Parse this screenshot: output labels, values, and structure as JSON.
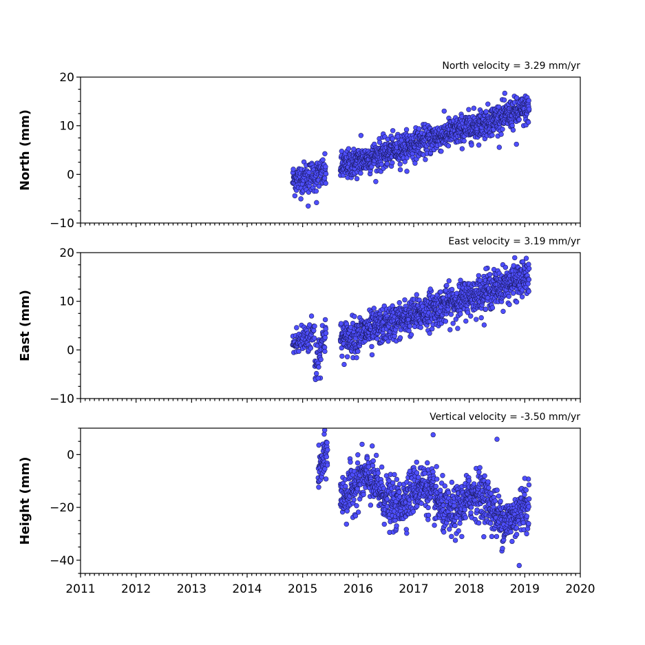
{
  "chart_data": [
    {
      "type": "scatter",
      "panel": "north",
      "ylabel": "North (mm)",
      "velocity_label": "North velocity = 3.29 mm/yr",
      "xlim": [
        2011,
        2020
      ],
      "ylim": [
        -10,
        20
      ],
      "yticks": [
        -10,
        0,
        10,
        20
      ],
      "xticks": [
        2011,
        2012,
        2013,
        2014,
        2015,
        2016,
        2017,
        2018,
        2019,
        2020
      ],
      "color": "#4f4fff",
      "segments": [
        {
          "x_start": 2014.82,
          "x_end": 2015.42,
          "y_start": -1.2,
          "y_end": 0.3,
          "scatter": 1.6,
          "step": 0.004
        },
        {
          "x_start": 2015.68,
          "x_end": 2019.08,
          "y_start": 1.5,
          "y_end": 13.5,
          "scatter": 1.5,
          "step": 0.0032
        }
      ],
      "outliers": [
        [
          2015.1,
          -6.5
        ],
        [
          2015.25,
          -5.8
        ],
        [
          2016.05,
          8.0
        ],
        [
          2018.85,
          6.2
        ]
      ]
    },
    {
      "type": "scatter",
      "panel": "east",
      "ylabel": "East (mm)",
      "velocity_label": "East velocity = 3.19 mm/yr",
      "xlim": [
        2011,
        2020
      ],
      "ylim": [
        -10,
        20
      ],
      "yticks": [
        -10,
        0,
        10,
        20
      ],
      "xticks": [
        2011,
        2012,
        2013,
        2014,
        2015,
        2016,
        2017,
        2018,
        2019,
        2020
      ],
      "color": "#4f4fff",
      "segments": [
        {
          "x_start": 2014.82,
          "x_end": 2015.22,
          "y_start": 1.0,
          "y_end": 3.5,
          "scatter": 1.8,
          "step": 0.005
        },
        {
          "x_start": 2015.22,
          "x_end": 2015.42,
          "y_start": -3.0,
          "y_end": 4.0,
          "scatter": 2.2,
          "step": 0.004
        },
        {
          "x_start": 2015.68,
          "x_end": 2019.08,
          "y_start": 2.0,
          "y_end": 15.0,
          "scatter": 1.8,
          "step": 0.0032
        }
      ],
      "outliers": [
        [
          2015.28,
          -5.8
        ],
        [
          2016.25,
          -1.0
        ],
        [
          2018.3,
          16.7
        ],
        [
          2017.3,
          12.5
        ]
      ]
    },
    {
      "type": "scatter",
      "panel": "vertical",
      "ylabel": "Height (mm)",
      "velocity_label": "Vertical velocity = -3.50 mm/yr",
      "xlim": [
        2011,
        2020
      ],
      "ylim": [
        -45,
        10
      ],
      "yticks": [
        -40,
        -20,
        0
      ],
      "xticks": [
        2011,
        2012,
        2013,
        2014,
        2015,
        2016,
        2017,
        2018,
        2019,
        2020
      ],
      "color": "#4f4fff",
      "segments": [
        {
          "x_start": 2015.28,
          "x_end": 2015.45,
          "y_start": -8.0,
          "y_end": 2.0,
          "scatter": 4.0,
          "step": 0.003
        },
        {
          "x_start": 2015.68,
          "x_end": 2019.08,
          "y_start": -12.0,
          "y_end": -22.0,
          "scatter": 4.5,
          "step": 0.0032,
          "seasonal_amp": 4.5
        }
      ],
      "outliers": [
        [
          2018.9,
          -42.0
        ],
        [
          2017.35,
          7.5
        ],
        [
          2018.5,
          5.8
        ],
        [
          2019.0,
          -9.0
        ]
      ]
    }
  ]
}
